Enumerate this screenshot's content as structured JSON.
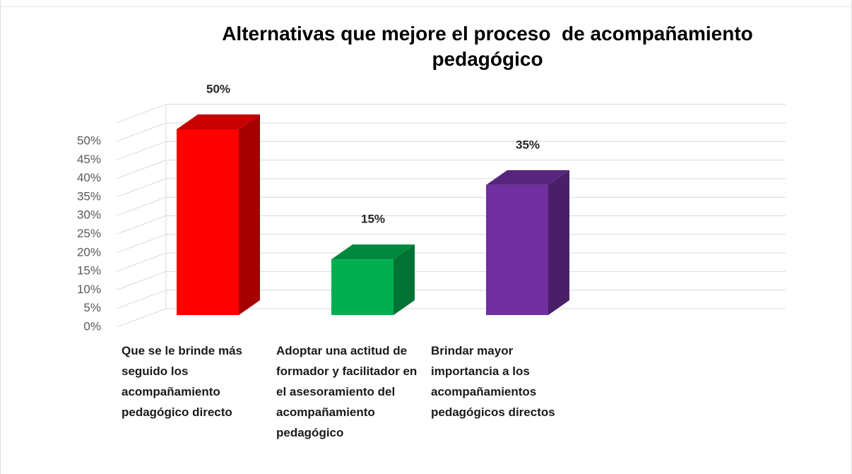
{
  "chart_data": {
    "type": "bar3d",
    "title": "Alternativas que mejore el proceso  de acompañamiento pedagógico",
    "categories": [
      "Que se le brinde más seguido los acompañamiento pedagógico directo",
      "Adoptar una actitud de formador y facilitador en el asesoramiento del acompañamiento pedagógico",
      "Brindar mayor importancia a los acompañamientos pedagógicos directos"
    ],
    "values": [
      50,
      15,
      35
    ],
    "value_labels": [
      "50%",
      "15%",
      "35%"
    ],
    "colors": [
      "#ff0000",
      "#00b050",
      "#7030a0"
    ],
    "ylim": [
      0,
      55
    ],
    "yticks": [
      {
        "value": 0,
        "label": "0%"
      },
      {
        "value": 5,
        "label": "5%"
      },
      {
        "value": 10,
        "label": "10%"
      },
      {
        "value": 15,
        "label": "15%"
      },
      {
        "value": 20,
        "label": "20%"
      },
      {
        "value": 25,
        "label": "25%"
      },
      {
        "value": 30,
        "label": "30%"
      },
      {
        "value": 35,
        "label": "35%"
      },
      {
        "value": 40,
        "label": "40%"
      },
      {
        "value": 45,
        "label": "45%"
      },
      {
        "value": 50,
        "label": "50%"
      }
    ],
    "grid": true
  }
}
